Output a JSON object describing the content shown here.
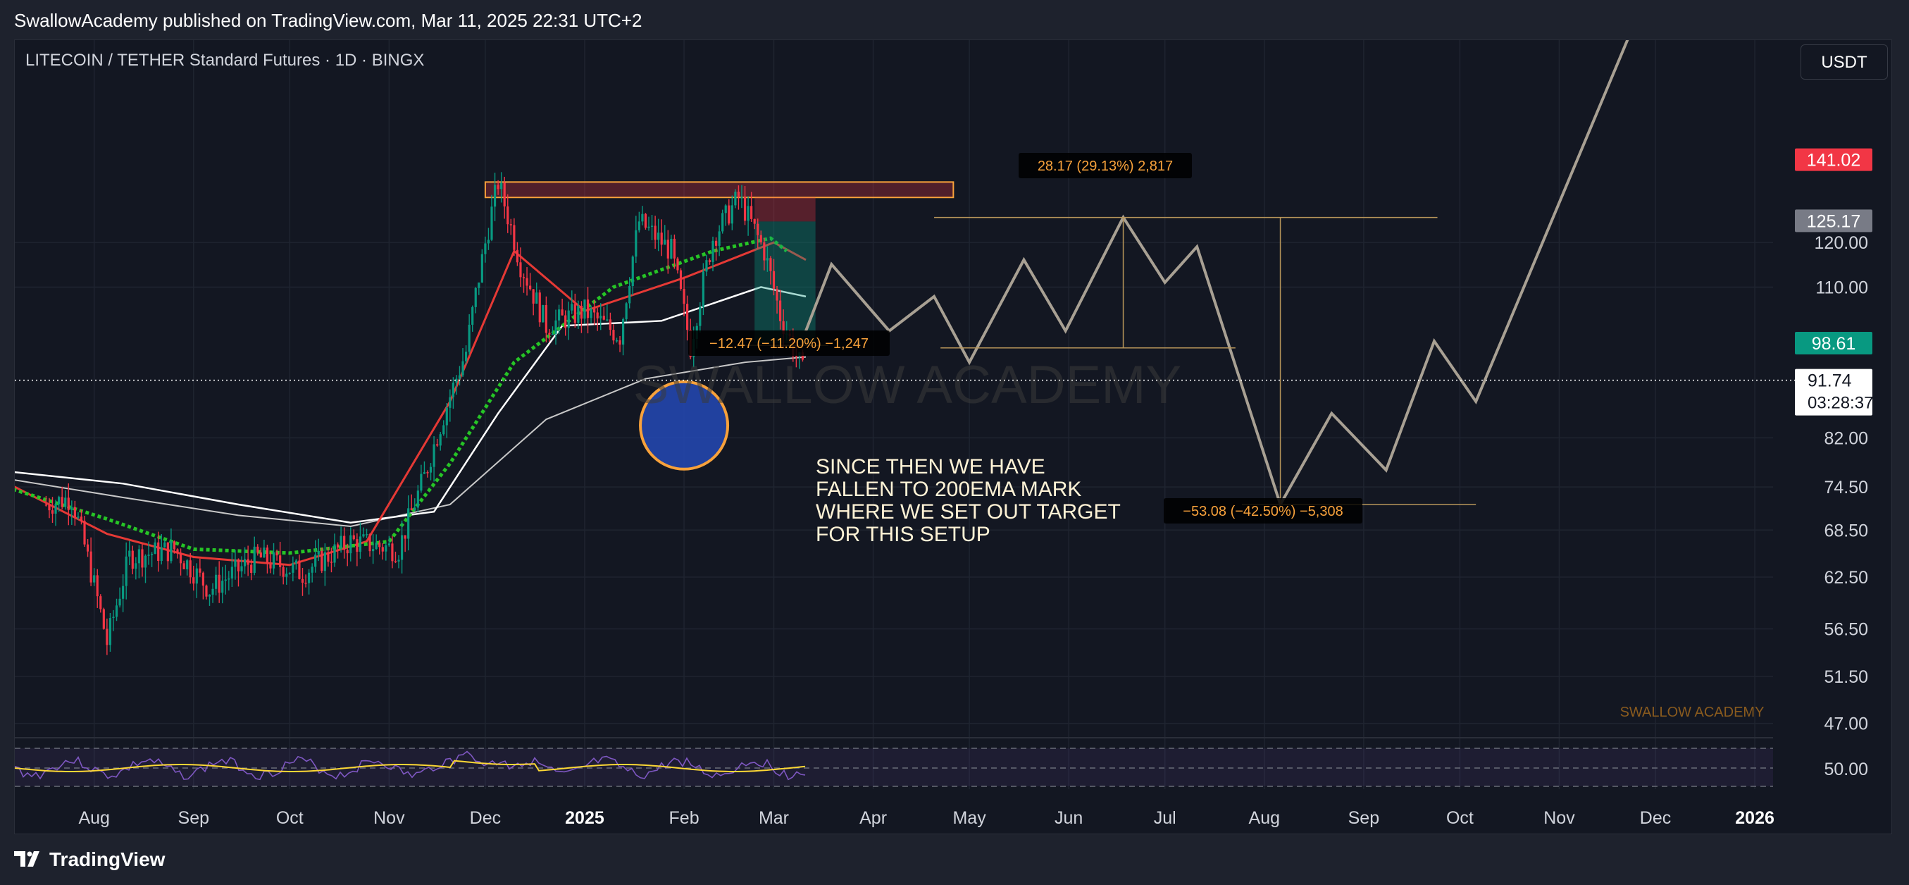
{
  "header": {
    "publisher_line": "SwallowAcademy published on TradingView.com, Mar 11, 2025 22:31 UTC+2"
  },
  "chart_header": {
    "symbol": "LITECOIN / TETHER Standard Futures · 1D · BINGX",
    "currency_button": "USDT"
  },
  "footer": {
    "brand": "TradingView"
  },
  "colors": {
    "background": "#131722",
    "up_candle": "#089981",
    "down_candle": "#f23645",
    "ema_red": "#e53935",
    "ema_green": "#26c426",
    "ema_white": "#ffffff",
    "projection_path": "#a8a093",
    "resistance_box": "#f7a13b",
    "price_label_red": "#f23645",
    "price_label_gray": "#787b86",
    "price_label_green": "#089981",
    "annotation_text": "#fff3d6",
    "measure_text": "#f7a13b",
    "rsi_line": "#7e57c2",
    "rsi_ma": "#fdd835",
    "support_circle": "#2449b5"
  },
  "chart_data": {
    "type": "line",
    "y_scale": "log",
    "ylim": [
      45.7,
      178
    ],
    "x_axis_labels": [
      "Aug",
      "Sep",
      "Oct",
      "Nov",
      "Dec",
      "2025",
      "Feb",
      "Mar",
      "Apr",
      "May",
      "Jun",
      "Jul",
      "Aug",
      "Sep",
      "Oct",
      "Nov",
      "Dec",
      "2026"
    ],
    "y_axis_labels": [
      "120.00",
      "110.00",
      "82.00",
      "74.50",
      "68.50",
      "62.50",
      "56.50",
      "51.50",
      "47.00"
    ],
    "price_labels": [
      {
        "value": "141.02",
        "style": "red"
      },
      {
        "value": "125.17",
        "style": "gray"
      },
      {
        "value": "98.61",
        "style": "green"
      }
    ],
    "current_price": {
      "value": "91.74",
      "countdown": "03:28:37"
    },
    "historical_series": [
      {
        "date": "2024-07-17",
        "price": 72
      },
      {
        "date": "2024-07-25",
        "price": 73
      },
      {
        "date": "2024-08-05",
        "price": 55
      },
      {
        "date": "2024-08-12",
        "price": 65
      },
      {
        "date": "2024-08-26",
        "price": 66
      },
      {
        "date": "2024-09-06",
        "price": 61
      },
      {
        "date": "2024-09-21",
        "price": 65
      },
      {
        "date": "2024-10-05",
        "price": 63
      },
      {
        "date": "2024-10-20",
        "price": 67
      },
      {
        "date": "2024-11-04",
        "price": 66
      },
      {
        "date": "2024-11-12",
        "price": 76
      },
      {
        "date": "2024-11-25",
        "price": 97
      },
      {
        "date": "2024-12-05",
        "price": 135
      },
      {
        "date": "2024-12-12",
        "price": 115
      },
      {
        "date": "2024-12-20",
        "price": 102
      },
      {
        "date": "2025-01-01",
        "price": 105
      },
      {
        "date": "2025-01-12",
        "price": 100
      },
      {
        "date": "2025-01-18",
        "price": 125
      },
      {
        "date": "2025-01-28",
        "price": 118
      },
      {
        "date": "2025-02-03",
        "price": 98
      },
      {
        "date": "2025-02-10",
        "price": 121
      },
      {
        "date": "2025-02-18",
        "price": 131
      },
      {
        "date": "2025-02-26",
        "price": 118
      },
      {
        "date": "2025-03-03",
        "price": 104
      },
      {
        "date": "2025-03-11",
        "price": 91.74
      }
    ],
    "projection_series": [
      {
        "date": "2025-03-11",
        "price": 101
      },
      {
        "date": "2025-03-19",
        "price": 115
      },
      {
        "date": "2025-04-06",
        "price": 101
      },
      {
        "date": "2025-04-20",
        "price": 108
      },
      {
        "date": "2025-05-01",
        "price": 95
      },
      {
        "date": "2025-05-18",
        "price": 116
      },
      {
        "date": "2025-05-31",
        "price": 101
      },
      {
        "date": "2025-06-18",
        "price": 126
      },
      {
        "date": "2025-07-01",
        "price": 111
      },
      {
        "date": "2025-07-11",
        "price": 119
      },
      {
        "date": "2025-08-06",
        "price": 72
      },
      {
        "date": "2025-08-22",
        "price": 86
      },
      {
        "date": "2025-09-08",
        "price": 77
      },
      {
        "date": "2025-09-23",
        "price": 99
      },
      {
        "date": "2025-10-06",
        "price": 88
      },
      {
        "date": "2025-11-23",
        "price": 180
      }
    ],
    "resistance_zone": {
      "from": "2024-12-01",
      "to": "2025-04-26",
      "low": 131,
      "high": 135
    },
    "support_circle": {
      "date": "2025-02-01",
      "price": 84
    },
    "measurements": [
      {
        "label": "28.17 (29.13%) 2,817"
      },
      {
        "label": "−12.47 (−11.20%) −1,247"
      },
      {
        "label": "−53.08 (−42.50%) −5,308"
      }
    ],
    "annotation": "SINCE THEN WE HAVE FALLEN TO 200EMA MARK WHERE WE SET OUT TARGET FOR THIS SETUP",
    "watermark_large": "SWALLOW ACADEMY",
    "watermark_small": "SWALLOW ACADEMY",
    "rsi": {
      "label": "50.00"
    }
  }
}
